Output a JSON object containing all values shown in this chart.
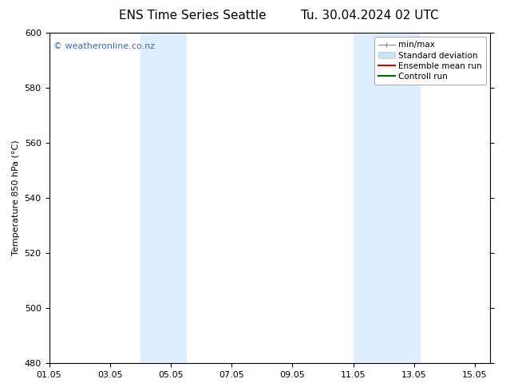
{
  "title_left": "ENS Time Series Seattle",
  "title_right": "Tu. 30.04.2024 02 UTC",
  "ylabel": "Temperature 850 hPa (°C)",
  "ylim": [
    480,
    600
  ],
  "yticks": [
    480,
    500,
    520,
    540,
    560,
    580,
    600
  ],
  "xtick_labels": [
    "01.05",
    "03.05",
    "05.05",
    "07.05",
    "09.05",
    "11.05",
    "13.05",
    "15.05"
  ],
  "xtick_days": [
    1,
    3,
    5,
    7,
    9,
    11,
    13,
    15
  ],
  "xlim_days": [
    1,
    15.5
  ],
  "shaded_bands": [
    {
      "xmin_day": 4.0,
      "xmax_day": 5.5,
      "color": "#ddeeff"
    },
    {
      "xmin_day": 11.0,
      "xmax_day": 13.2,
      "color": "#ddeeff"
    }
  ],
  "watermark_text": "© weatheronline.co.nz",
  "watermark_color": "#3366cc",
  "legend_items": [
    {
      "label": "min/max"
    },
    {
      "label": "Standard deviation"
    },
    {
      "label": "Ensemble mean run"
    },
    {
      "label": "Controll run"
    }
  ],
  "background_color": "#ffffff",
  "plot_bg_color": "#ffffff",
  "spine_color": "#000000",
  "title_fontsize": 11,
  "tick_fontsize": 8,
  "ylabel_fontsize": 8,
  "watermark_fontsize": 8,
  "legend_fontsize": 7.5
}
